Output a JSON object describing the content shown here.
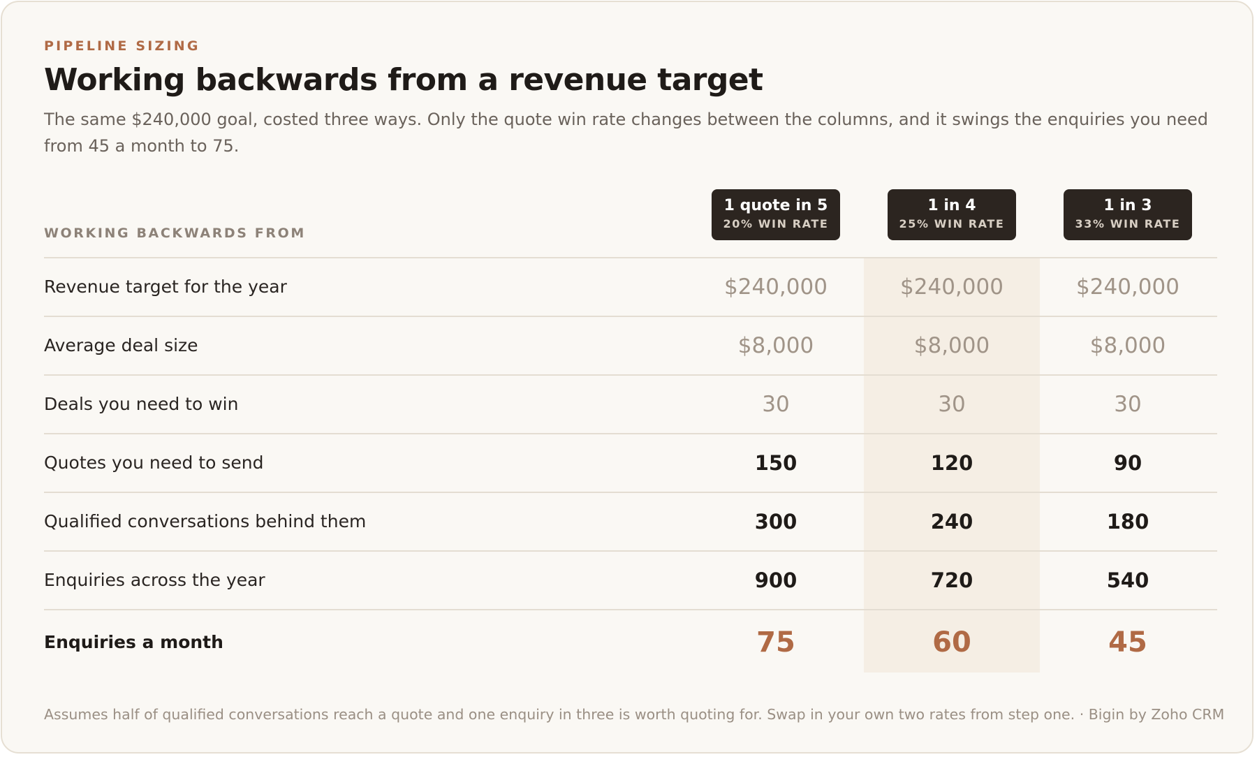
{
  "header": {
    "eyebrow": "PIPELINE SIZING",
    "title": "Working backwards from a revenue target",
    "subtitle": "The same $240,000 goal, costed three ways. Only the quote win rate changes between the columns, and it swings the enquiries you need from 45 a month to 75."
  },
  "table": {
    "row_header_label": "WORKING BACKWARDS FROM",
    "columns": [
      {
        "title": "1 quote in 5",
        "subtitle": "20% WIN RATE"
      },
      {
        "title": "1 in 4",
        "subtitle": "25% WIN RATE"
      },
      {
        "title": "1 in 3",
        "subtitle": "33% WIN RATE"
      }
    ],
    "rows": [
      {
        "label": "Revenue target for the year",
        "values": [
          "$240,000",
          "$240,000",
          "$240,000"
        ]
      },
      {
        "label": "Average deal size",
        "values": [
          "$8,000",
          "$8,000",
          "$8,000"
        ]
      },
      {
        "label": "Deals you need to win",
        "values": [
          "30",
          "30",
          "30"
        ]
      },
      {
        "label": "Quotes you need to send",
        "values": [
          "150",
          "120",
          "90"
        ]
      },
      {
        "label": "Qualified conversations behind them",
        "values": [
          "300",
          "240",
          "180"
        ]
      },
      {
        "label": "Enquiries across the year",
        "values": [
          "900",
          "720",
          "540"
        ]
      },
      {
        "label": "Enquiries a month",
        "values": [
          "75",
          "60",
          "45"
        ]
      }
    ]
  },
  "footnote": "Assumes half of qualified conversations reach a quote and one enquiry in three is worth quoting for. Swap in your own two rates from step one. · Bigin by Zoho CRM",
  "colors": {
    "accent": "#b06a45",
    "header_pill": "#2c2520",
    "highlight_column": "#f5eee4",
    "card_background": "#faf8f4"
  }
}
